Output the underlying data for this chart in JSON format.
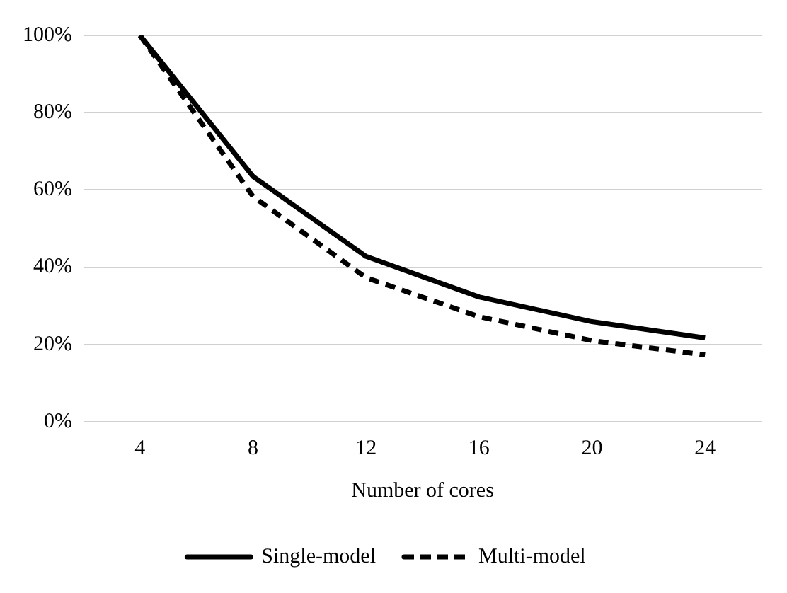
{
  "chart_data": {
    "type": "line",
    "xlabel": "Number of cores",
    "categories": [
      "4",
      "8",
      "12",
      "16",
      "20",
      "24"
    ],
    "series": [
      {
        "name": "Single-model",
        "color": "#000000",
        "line_style": "solid",
        "values": [
          100,
          63.5,
          42.8,
          32.3,
          25.9,
          21.7
        ]
      },
      {
        "name": "Multi-model",
        "color": "#000000",
        "line_style": "dashed",
        "values": [
          100,
          58.3,
          37.3,
          27.2,
          21,
          17.3
        ]
      }
    ],
    "ylim": [
      0,
      100
    ],
    "yticks": [
      {
        "value": 0,
        "label": "0%"
      },
      {
        "value": 20,
        "label": "20%"
      },
      {
        "value": 40,
        "label": "40%"
      },
      {
        "value": 60,
        "label": "60%"
      },
      {
        "value": 80,
        "label": "80%"
      },
      {
        "value": 100,
        "label": "100%"
      }
    ],
    "grid": "y",
    "legend": "bottom",
    "marker": "none"
  }
}
